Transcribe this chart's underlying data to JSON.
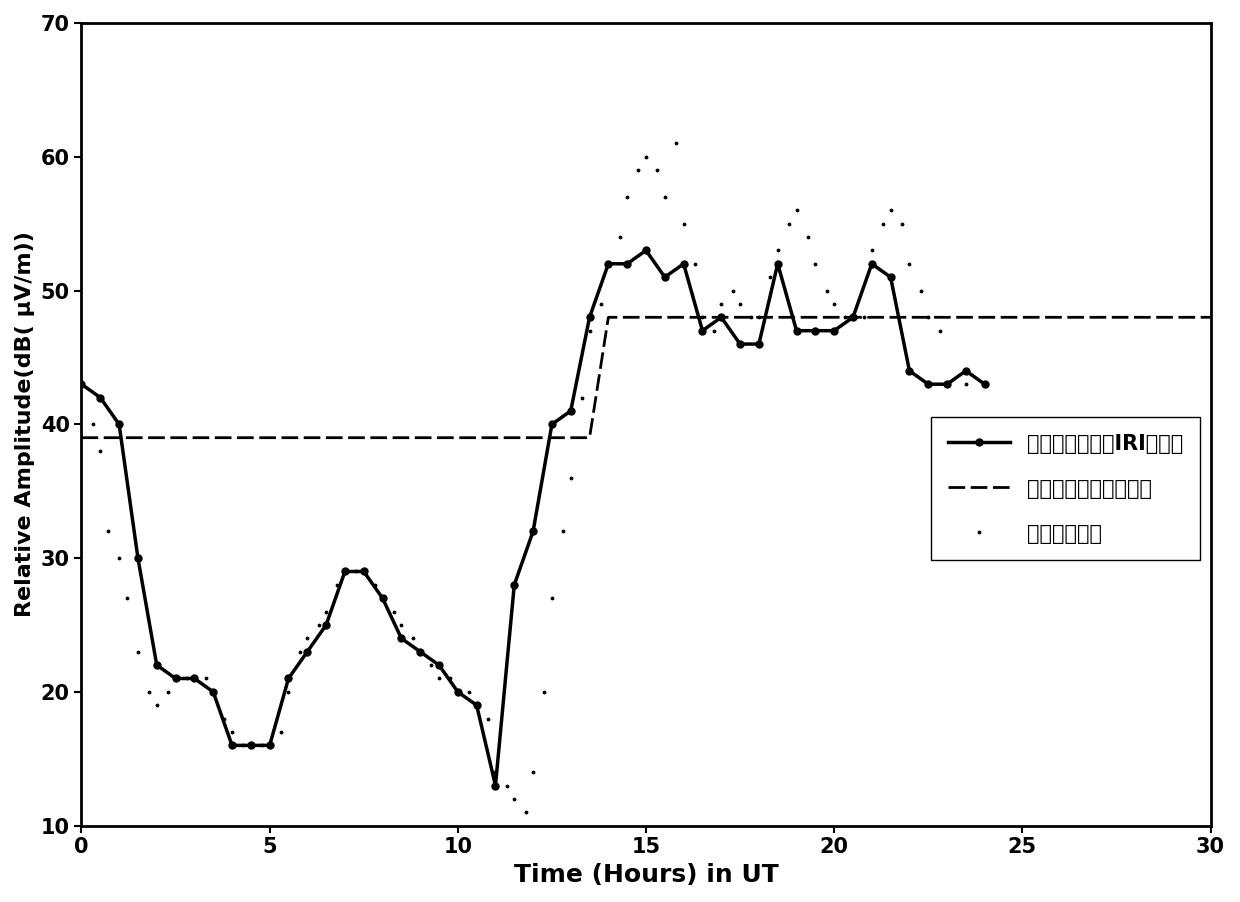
{
  "title": "",
  "xlabel": "Time (Hours) in UT",
  "ylabel": "Relative Amplitude(dB( μV/m))",
  "xlim": [
    0,
    30
  ],
  "ylim": [
    10,
    70
  ],
  "xticks": [
    0,
    5,
    10,
    15,
    20,
    25,
    30
  ],
  "yticks": [
    10,
    20,
    30,
    40,
    50,
    60,
    70
  ],
  "background_color": "#ffffff",
  "line1_label": "本文预测结果（IRI模型）",
  "line2_label": "传统解析（指数模型）",
  "line3_label": "文献实测数据",
  "line1_x": [
    0,
    0.5,
    1.0,
    1.5,
    2.0,
    2.5,
    3.0,
    3.5,
    4.0,
    4.5,
    5.0,
    5.5,
    6.0,
    6.5,
    7.0,
    7.5,
    8.0,
    8.5,
    9.0,
    9.5,
    10.0,
    10.5,
    11.0,
    11.5,
    12.0,
    12.5,
    13.0,
    13.5,
    14.0,
    14.5,
    15.0,
    15.5,
    16.0,
    16.5,
    17.0,
    17.5,
    18.0,
    18.5,
    19.0,
    19.5,
    20.0,
    20.5,
    21.0,
    21.5,
    22.0,
    22.5,
    23.0,
    23.5,
    24.0
  ],
  "line1_y": [
    43,
    42,
    40,
    30,
    22,
    21,
    21,
    20,
    16,
    16,
    16,
    21,
    23,
    25,
    29,
    29,
    27,
    24,
    23,
    22,
    20,
    19,
    13,
    28,
    32,
    40,
    41,
    48,
    52,
    52,
    53,
    51,
    52,
    47,
    48,
    46,
    46,
    52,
    47,
    47,
    47,
    48,
    52,
    51,
    44,
    43,
    43,
    44,
    43
  ],
  "line2_x": [
    0,
    1,
    13.5,
    14.0,
    24.5,
    25.0,
    30
  ],
  "line2_y": [
    39,
    39,
    39,
    48,
    48,
    48,
    48
  ],
  "line3_x": [
    0,
    0.3,
    0.5,
    0.7,
    1.0,
    1.2,
    1.5,
    1.8,
    2.0,
    2.3,
    2.5,
    2.8,
    3.0,
    3.3,
    3.5,
    3.8,
    4.0,
    4.3,
    4.5,
    4.8,
    5.0,
    5.3,
    5.5,
    5.8,
    6.0,
    6.3,
    6.5,
    6.8,
    7.0,
    7.3,
    7.5,
    7.8,
    8.0,
    8.3,
    8.5,
    8.8,
    9.0,
    9.3,
    9.5,
    9.8,
    10.0,
    10.3,
    10.5,
    10.8,
    11.0,
    11.3,
    11.5,
    11.8,
    12.0,
    12.3,
    12.5,
    12.8,
    13.0,
    13.3,
    13.5,
    13.8,
    14.0,
    14.3,
    14.5,
    14.8,
    15.0,
    15.3,
    15.5,
    15.8,
    16.0,
    16.3,
    16.5,
    16.8,
    17.0,
    17.3,
    17.5,
    17.8,
    18.0,
    18.3,
    18.5,
    18.8,
    19.0,
    19.3,
    19.5,
    19.8,
    20.0,
    20.3,
    20.5,
    20.8,
    21.0,
    21.3,
    21.5,
    21.8,
    22.0,
    22.3,
    22.5,
    22.8,
    23.0,
    23.5,
    24.0
  ],
  "line3_y": [
    43,
    40,
    38,
    32,
    30,
    27,
    23,
    20,
    19,
    20,
    21,
    21,
    21,
    21,
    20,
    18,
    17,
    16,
    16,
    16,
    16,
    17,
    20,
    23,
    24,
    25,
    26,
    28,
    29,
    29,
    29,
    28,
    27,
    26,
    25,
    24,
    23,
    22,
    21,
    21,
    20,
    20,
    19,
    18,
    14,
    13,
    12,
    11,
    14,
    20,
    27,
    32,
    36,
    42,
    47,
    49,
    52,
    54,
    57,
    59,
    60,
    59,
    57,
    61,
    55,
    52,
    48,
    47,
    49,
    50,
    49,
    48,
    48,
    51,
    53,
    55,
    56,
    54,
    52,
    50,
    49,
    48,
    48,
    48,
    53,
    55,
    56,
    55,
    52,
    50,
    48,
    47,
    43,
    43,
    43
  ]
}
